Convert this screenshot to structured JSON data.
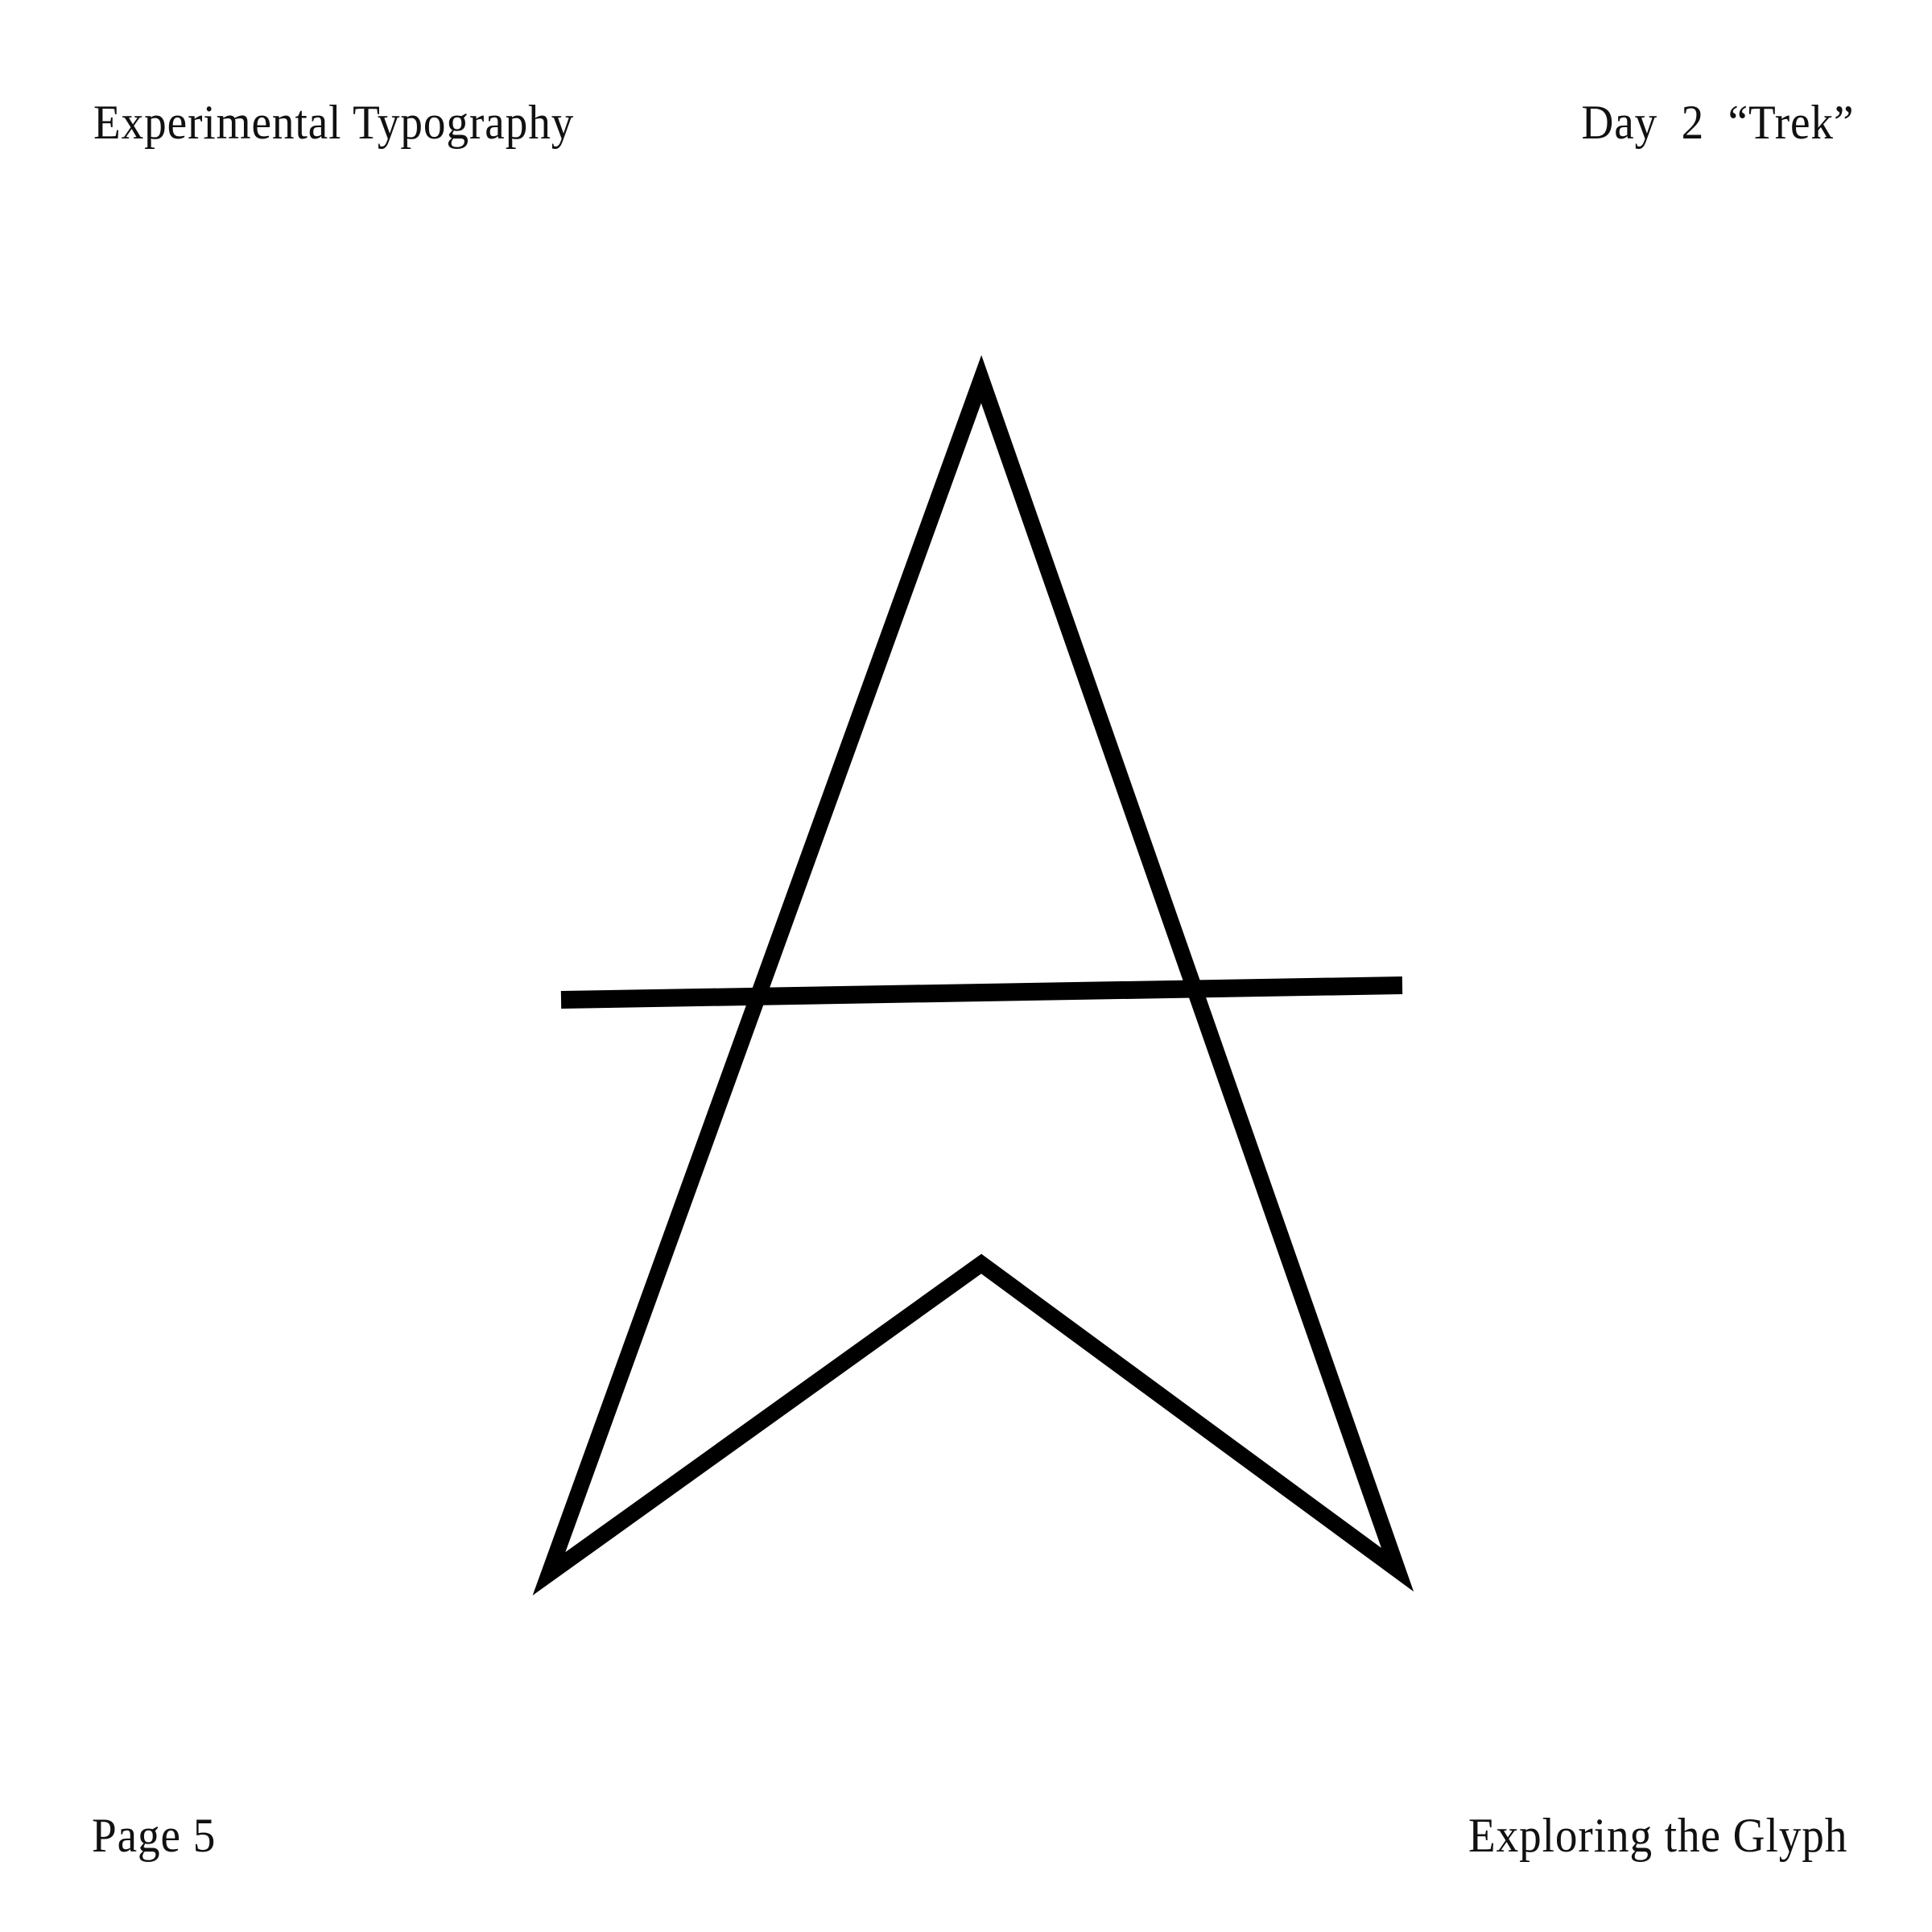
{
  "header": {
    "title": "Experimental Typography",
    "day": "Day  2  “Trek”"
  },
  "footer": {
    "page_label": "Page 5",
    "subtitle": "Exploring the Glyph"
  },
  "glyph": {
    "icon": "star-trek-a-glyph-icon",
    "color": "#000000"
  }
}
